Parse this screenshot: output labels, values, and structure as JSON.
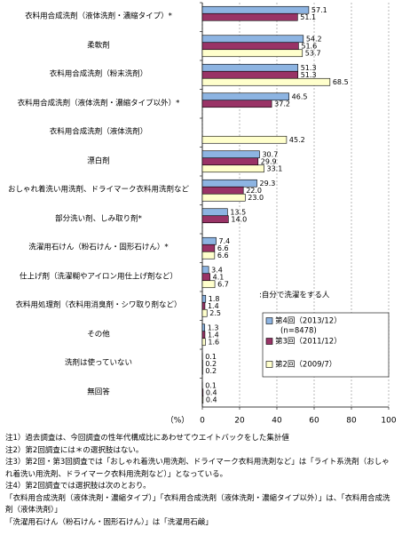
{
  "chart_data": {
    "type": "bar",
    "orientation": "horizontal",
    "categories": [
      "衣料用合成洗剤（液体洗剤・濃縮タイプ）*",
      "柔軟剤",
      "衣料用合成洗剤（粉末洗剤）",
      "衣料用合成洗剤（液体洗剤・濃縮タイプ以外）*",
      "衣料用合成洗剤（液体洗剤）",
      "漂白剤",
      "おしゃれ着洗い用洗剤、ドライマーク衣料用洗剤など",
      "部分洗い剤、しみ取り剤*",
      "洗濯用石けん（粉石けん・固形石けん）*",
      "仕上げ剤（洗濯糊やアイロン用仕上げ剤など）",
      "衣料用処理剤（衣料用消臭剤・シワ取り剤など）",
      "その他",
      "洗剤は使っていない",
      "無回答"
    ],
    "series": [
      {
        "name": "第4回（2013/12）",
        "color": "#8db4e2",
        "values": [
          57.1,
          54.2,
          51.3,
          46.5,
          null,
          30.7,
          29.3,
          13.5,
          7.4,
          3.4,
          1.8,
          1.3,
          0.1,
          0.1
        ],
        "value_labels": [
          "57.1",
          "54.2",
          "51.3",
          "46.5",
          null,
          "30.7",
          "29.3",
          "13.5",
          "7.4",
          "3.4",
          "1.8",
          "1.3",
          "0.1",
          "0.1"
        ]
      },
      {
        "name": "第3回（2011/12）",
        "color": "#993366",
        "values": [
          51.1,
          51.6,
          51.3,
          37.2,
          null,
          29.9,
          22.0,
          14.0,
          6.6,
          4.1,
          1.4,
          1.4,
          0.2,
          0.4
        ],
        "value_labels": [
          "51.1",
          "51.6",
          "51.3",
          "37.2",
          null,
          "29.9",
          "22.0",
          "14.0",
          "6.6",
          "4.1",
          "1.4",
          "1.4",
          "0.2",
          "0.4"
        ]
      },
      {
        "name": "第2回（2009/7）",
        "color": "#ffffcc",
        "values": [
          null,
          53.7,
          68.5,
          null,
          45.2,
          33.1,
          23.0,
          null,
          6.6,
          6.7,
          2.5,
          1.6,
          0.2,
          0.4
        ],
        "value_labels": [
          null,
          "53.7",
          "68.5",
          null,
          "45.2",
          "33.1",
          "23.0",
          null,
          "6.6",
          "6.7",
          "2.5",
          "1.6",
          "0.2",
          "0.4"
        ]
      }
    ],
    "legend_title": ":自分で洗濯をする人",
    "legend_note": "(n=8478)",
    "xlabel": "（%）",
    "xlim": [
      0,
      100
    ],
    "xticks": [
      0,
      20,
      40,
      60,
      80,
      100
    ],
    "grid": true,
    "notes": [
      "注1）過去調査は、今回調査の性年代構成比にあわせてウエイトバックをした集計値",
      "注2）第2回調査には＊の選択肢はない。",
      "注3）第2回・第3回調査では「おしゃれ着洗い用洗剤、ドライマーク衣料用洗剤など」は「ライト系洗剤（おしゃれ着洗い用洗剤、ドライマーク衣料用洗剤など）」となっている。",
      "注4）第2回調査では選択肢は次のとおり。",
      "「衣料用合成洗剤（液体洗剤・濃縮タイプ）」「衣料用合成洗剤（液体洗剤・濃縮タイプ以外）」は、「衣料用合成洗剤（液体洗剤）」",
      "「洗濯用石けん（粉石けん・固形石けん）」は「洗濯用石鹸」"
    ]
  }
}
